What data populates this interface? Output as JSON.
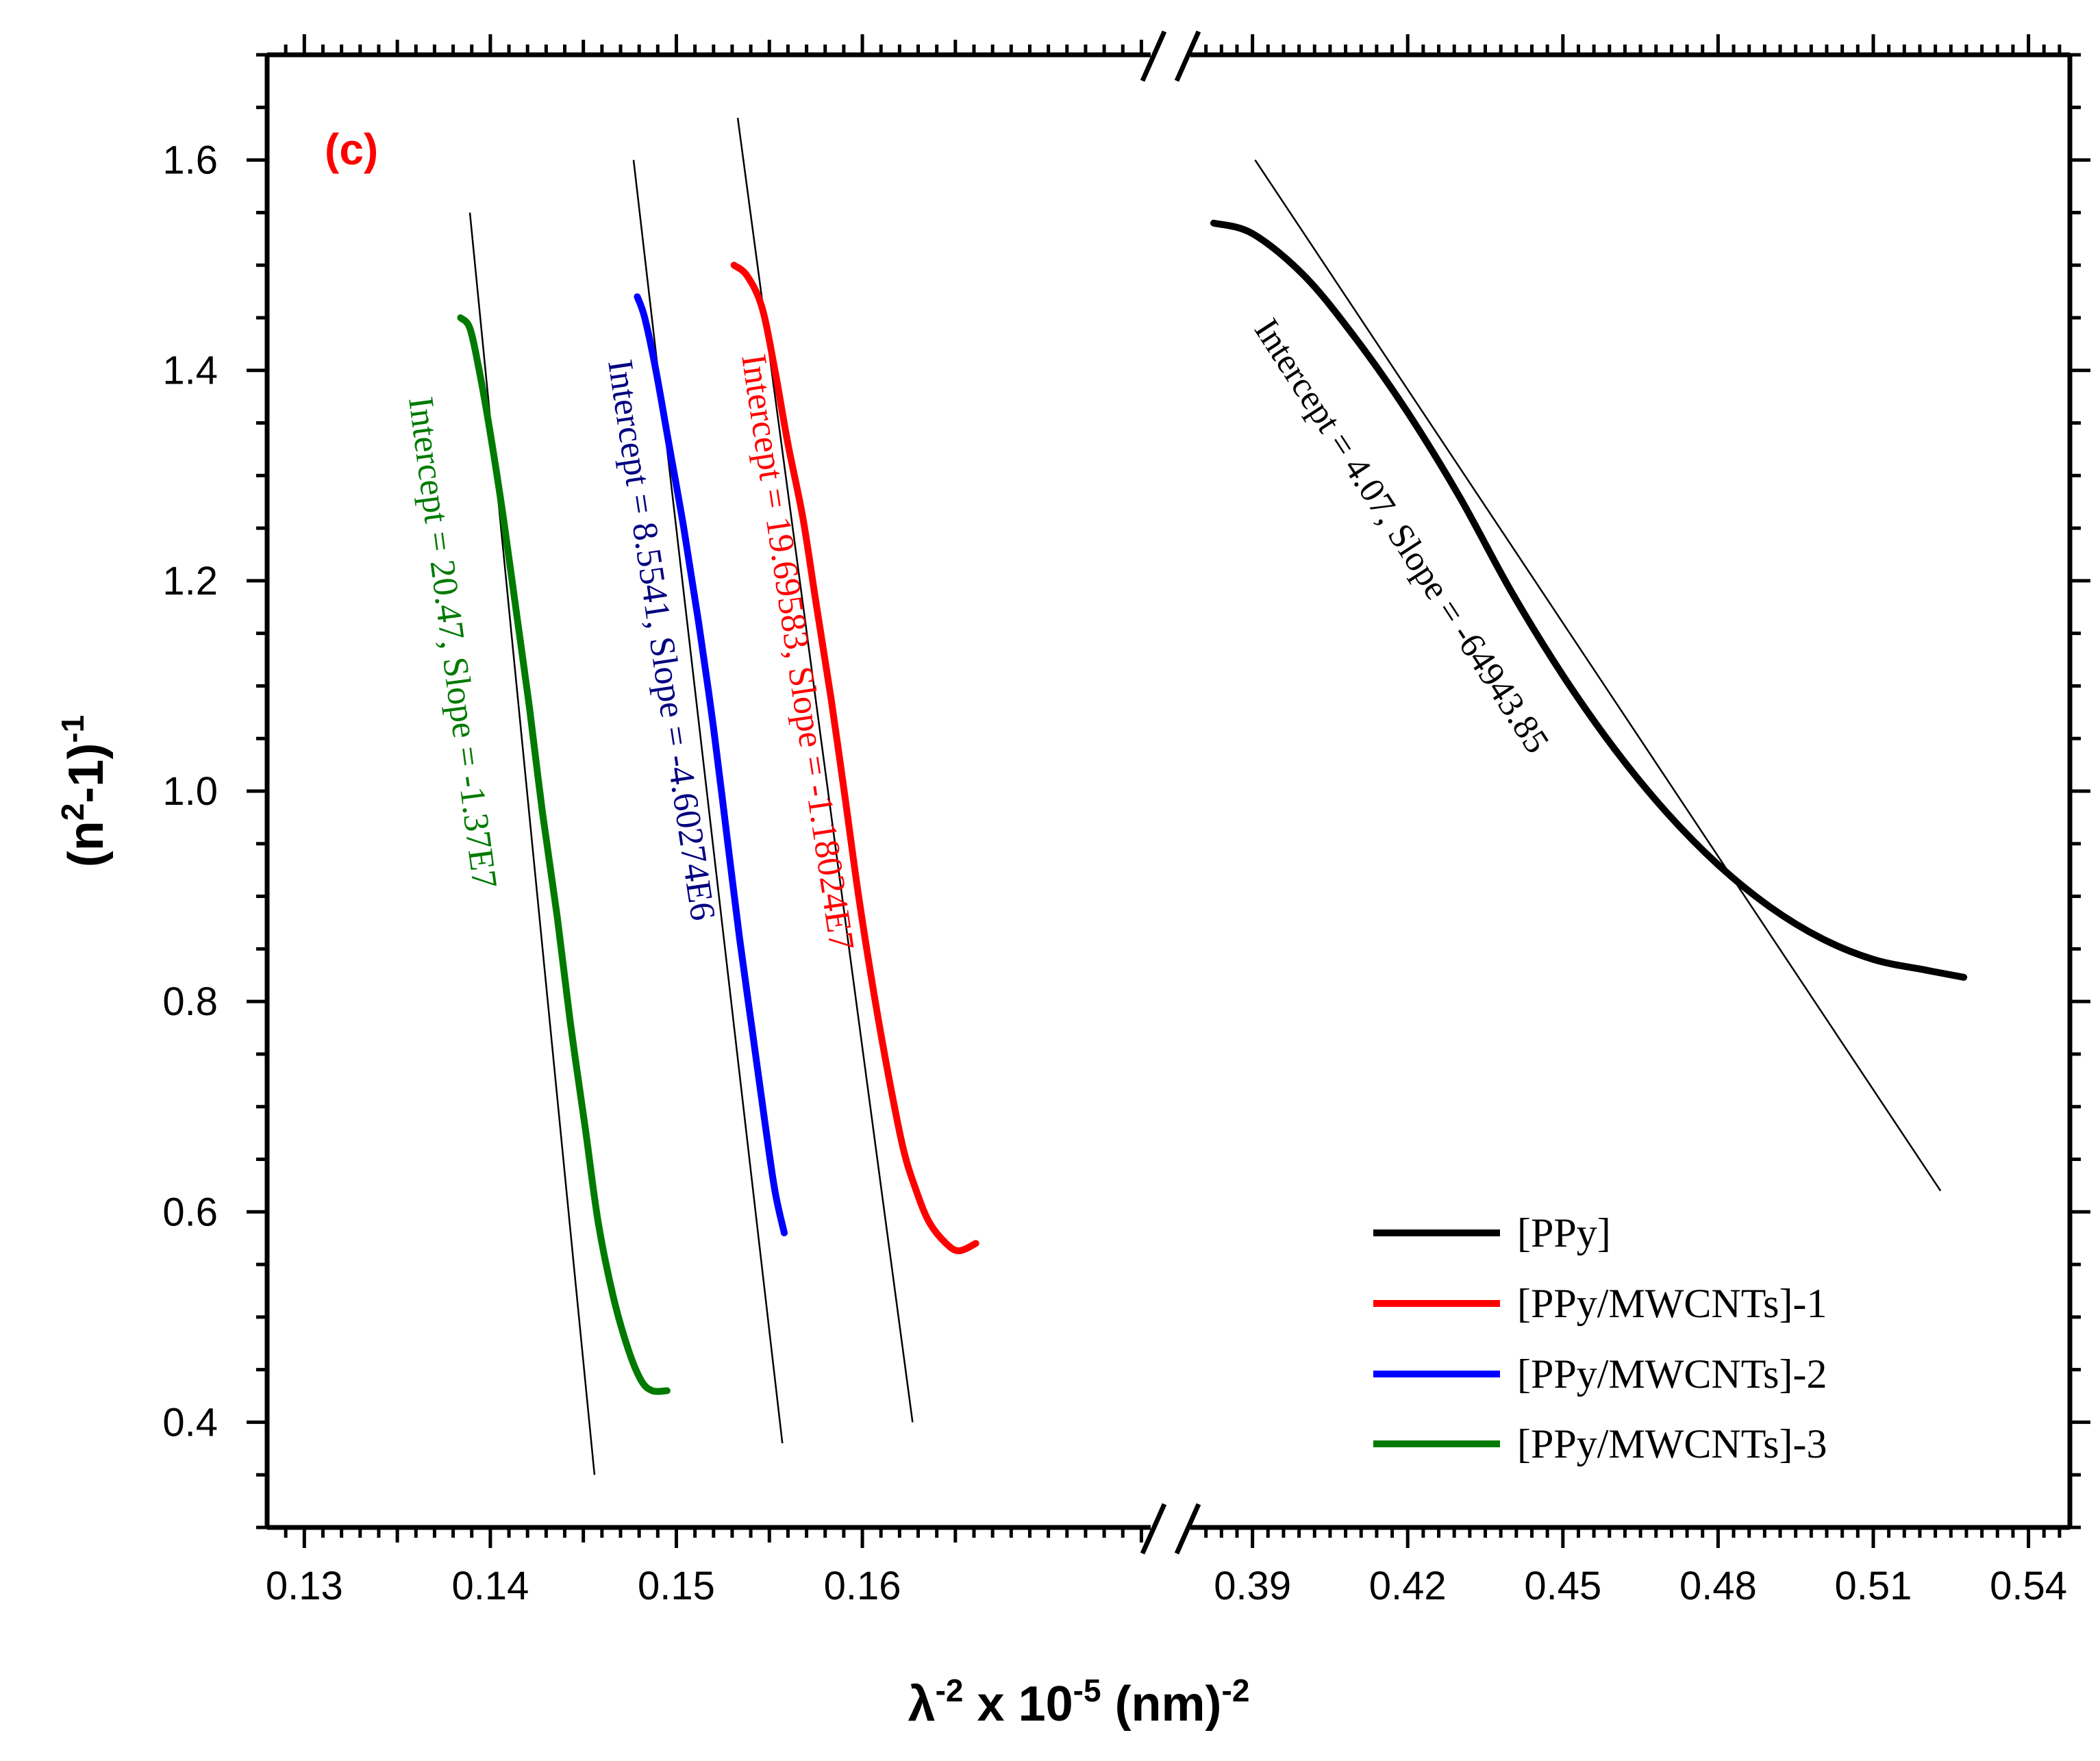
{
  "chart_data": {
    "type": "line",
    "panel_label": "(c)",
    "ylabel": {
      "base": "(n",
      "sup1": "2",
      "mid": "-1)",
      "sup2": "-1"
    },
    "xlabel": {
      "lambda": "λ",
      "sup1": "-2",
      "mid": " x 10",
      "sup2": "-5",
      "unit": " (nm)",
      "sup3": "-2"
    },
    "ylim": [
      0.3,
      1.7
    ],
    "yticks": [
      "0.4",
      "0.6",
      "0.8",
      "1.0",
      "1.2",
      "1.4",
      "1.6"
    ],
    "xaxis_break": true,
    "xlim_left": [
      0.128,
      0.1755
    ],
    "xticks_left": [
      "0.13",
      "0.14",
      "0.15",
      "0.16"
    ],
    "xlim_right": [
      0.378,
      0.548
    ],
    "xticks_right": [
      "0.39",
      "0.42",
      "0.45",
      "0.48",
      "0.51",
      "0.54"
    ],
    "legend": {
      "position": "bottom-right"
    },
    "series": [
      {
        "name": "[PPy]",
        "color": "#000000",
        "segment": "right",
        "x": [
          0.3825,
          0.39,
          0.4,
          0.41,
          0.42,
          0.43,
          0.44,
          0.45,
          0.46,
          0.47,
          0.48,
          0.49,
          0.5,
          0.51,
          0.52,
          0.5275
        ],
        "y": [
          1.54,
          1.53,
          1.49,
          1.43,
          1.36,
          1.28,
          1.19,
          1.11,
          1.04,
          0.98,
          0.93,
          0.89,
          0.86,
          0.84,
          0.83,
          0.823
        ],
        "fit": {
          "x": [
            0.3905,
            0.523
          ],
          "y": [
            1.6,
            0.62
          ]
        }
      },
      {
        "name": "[PPy/MWCNTs]-1",
        "color": "#ff0000",
        "segment": "left",
        "x": [
          0.1531,
          0.1538,
          0.1546,
          0.1553,
          0.156,
          0.1568,
          0.1575,
          0.1583,
          0.1591,
          0.1598,
          0.1606,
          0.1614,
          0.1622,
          0.1629,
          0.1636,
          0.1645,
          0.1652,
          0.1661
        ],
        "y": [
          1.5,
          1.49,
          1.46,
          1.4,
          1.33,
          1.26,
          1.18,
          1.09,
          0.99,
          0.9,
          0.81,
          0.73,
          0.66,
          0.62,
          0.59,
          0.57,
          0.563,
          0.57
        ],
        "fit": {
          "x": [
            0.1533,
            0.1627
          ],
          "y": [
            1.64,
            0.4
          ]
        }
      },
      {
        "name": "[PPy/MWCNTs]-2",
        "color": "#0000ff",
        "segment": "left",
        "x": [
          0.1479,
          0.1483,
          0.1489,
          0.1496,
          0.1504,
          0.1512,
          0.152,
          0.1527,
          0.1534,
          0.1541,
          0.1548,
          0.1553,
          0.1558
        ],
        "y": [
          1.47,
          1.45,
          1.4,
          1.33,
          1.25,
          1.16,
          1.06,
          0.96,
          0.86,
          0.77,
          0.68,
          0.62,
          0.58
        ],
        "fit": {
          "x": [
            0.1477,
            0.1557
          ],
          "y": [
            1.6,
            0.38
          ]
        }
      },
      {
        "name": "[PPy/MWCNTs]-3",
        "color": "#007a00",
        "segment": "left",
        "x": [
          0.1384,
          0.1389,
          0.1394,
          0.14,
          0.1407,
          0.1414,
          0.1421,
          0.1428,
          0.1436,
          0.1443,
          0.1451,
          0.1458,
          0.1466,
          0.1474,
          0.1481,
          0.1487,
          0.1495
        ],
        "y": [
          1.45,
          1.44,
          1.4,
          1.34,
          1.26,
          1.17,
          1.08,
          0.98,
          0.88,
          0.78,
          0.68,
          0.59,
          0.52,
          0.47,
          0.44,
          0.43,
          0.43
        ],
        "fit": {
          "x": [
            0.1389,
            0.1456
          ],
          "y": [
            1.55,
            0.35
          ]
        }
      }
    ],
    "annotations": [
      {
        "series": 0,
        "text": "Intercept = 4.07, Slope = -64943.85",
        "color": "#000000"
      },
      {
        "series": 1,
        "text": "Intercept = 19.69583, Slope = -1.18024E7",
        "color": "#ff0000"
      },
      {
        "series": 2,
        "text": "Intercept = 8.5541, Slope = -4.60274E6",
        "color": "#000080"
      },
      {
        "series": 3,
        "text": "Intercept = 20.47, Slope = -1.37E7",
        "color": "#007a00"
      }
    ]
  }
}
